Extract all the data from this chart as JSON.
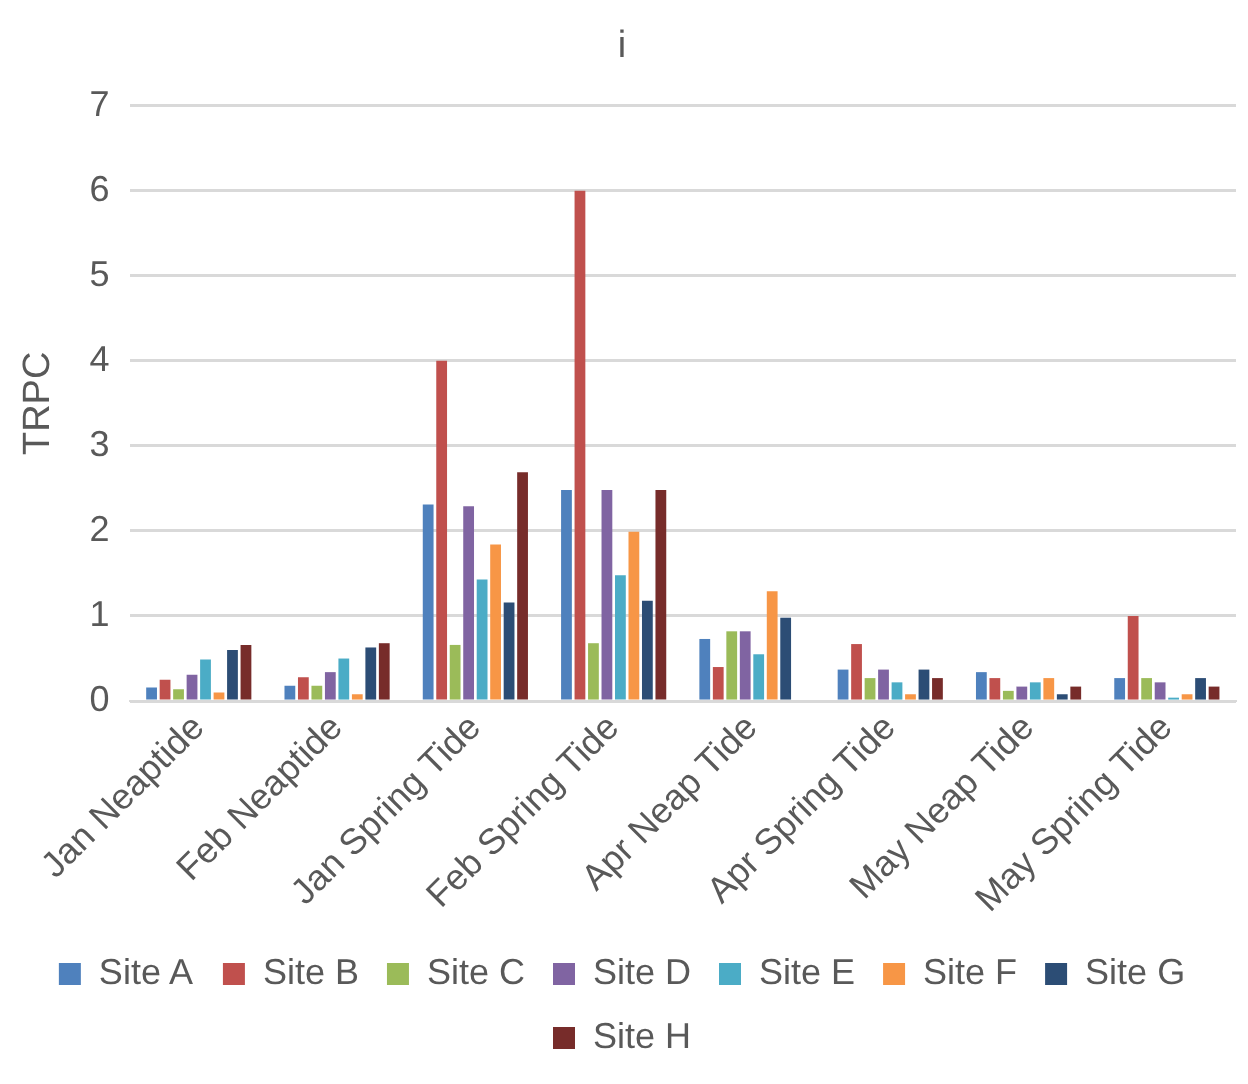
{
  "chart_data": {
    "type": "bar",
    "title": "i",
    "ylabel": "TRPC",
    "categories": [
      "Jan Neaptide",
      "Feb Neaptide",
      "Jan Spring Tide",
      "Feb Spring Tide",
      "Apr Neap Tide",
      "Apr Spring Tide",
      "May Neap Tide",
      "May Spring Tide"
    ],
    "series": [
      {
        "name": "Site A",
        "color": "#4f81bd",
        "values": [
          0.16,
          0.18,
          2.31,
          2.48,
          0.73,
          0.37,
          0.34,
          0.27
        ]
      },
      {
        "name": "Site B",
        "color": "#c0504d",
        "values": [
          0.25,
          0.28,
          4.0,
          6.0,
          0.4,
          0.67,
          0.27,
          1.0
        ]
      },
      {
        "name": "Site C",
        "color": "#9bbb59",
        "values": [
          0.14,
          0.18,
          0.66,
          0.68,
          0.82,
          0.27,
          0.12,
          0.27
        ]
      },
      {
        "name": "Site D",
        "color": "#8064a2",
        "values": [
          0.31,
          0.34,
          2.29,
          2.48,
          0.82,
          0.37,
          0.17,
          0.22
        ]
      },
      {
        "name": "Site E",
        "color": "#4bacc6",
        "values": [
          0.49,
          0.5,
          1.43,
          1.48,
          0.55,
          0.22,
          0.22,
          0.04
        ]
      },
      {
        "name": "Site F",
        "color": "#f79646",
        "values": [
          0.1,
          0.08,
          1.84,
          1.99,
          1.29,
          0.08,
          0.27,
          0.08
        ]
      },
      {
        "name": "Site G",
        "color": "#2c4d75",
        "values": [
          0.6,
          0.63,
          1.16,
          1.18,
          0.98,
          0.37,
          0.08,
          0.27
        ]
      },
      {
        "name": "Site H",
        "color": "#772c2a",
        "values": [
          0.66,
          0.68,
          2.69,
          2.48,
          null,
          0.27,
          0.17,
          0.17
        ]
      }
    ],
    "ylim": [
      0,
      7
    ],
    "yticks": [
      0,
      1,
      2,
      3,
      4,
      5,
      6,
      7
    ],
    "grid": "y",
    "legend": "bottom"
  }
}
